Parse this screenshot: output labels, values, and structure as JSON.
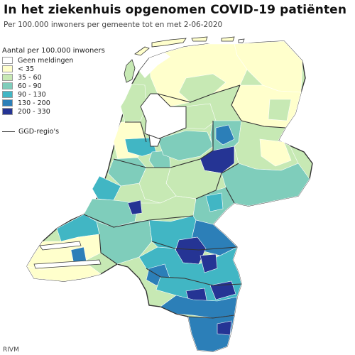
{
  "header": {
    "title": "In het ziekenhuis opgenomen COVID-19 patiënten",
    "subtitle": "Per 100.000 inwoners per gemeente tot en met 2-06-2020"
  },
  "legend": {
    "title": "Aantal per 100.000 inwoners",
    "items": [
      {
        "label": "Geen meldingen",
        "color": "#ffffff"
      },
      {
        "label": "< 35",
        "color": "#ffffcc"
      },
      {
        "label": "35 - 60",
        "color": "#c7e9b4"
      },
      {
        "label": "60 - 90",
        "color": "#7fcdbb"
      },
      {
        "label": "90 - 130",
        "color": "#41b6c4"
      },
      {
        "label": "130 - 200",
        "color": "#2c7fb8"
      },
      {
        "label": "200 - 330",
        "color": "#253494"
      }
    ],
    "boundary_label": "GGD-regio's"
  },
  "credit": "RIVM",
  "map": {
    "border_color": "#333333",
    "municipality_line_color": "#ffffff"
  }
}
